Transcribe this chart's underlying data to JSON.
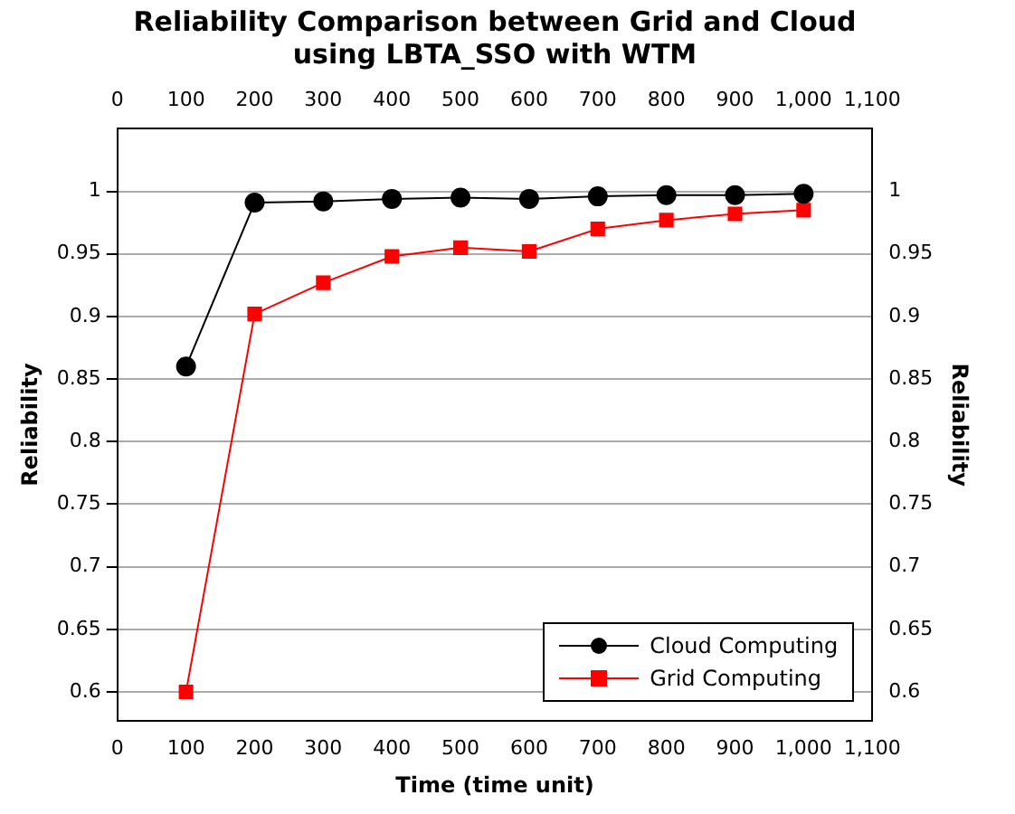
{
  "chart_data": {
    "type": "line",
    "title": "Reliability Comparison between Grid and Cloud using LBTA_SSO with WTM",
    "xlabel": "Time (time unit)",
    "ylabel": "Reliability",
    "y2label": "Reliability",
    "x": [
      100,
      200,
      300,
      400,
      500,
      600,
      700,
      800,
      900,
      1000
    ],
    "series": [
      {
        "name": "Cloud Computing",
        "color": "#000000",
        "marker": "circle",
        "values": [
          0.86,
          0.991,
          0.992,
          0.994,
          0.995,
          0.994,
          0.996,
          0.997,
          0.997,
          0.998
        ]
      },
      {
        "name": "Grid Computing",
        "color": "#ff0000",
        "marker": "square",
        "values": [
          0.6,
          0.902,
          0.927,
          0.948,
          0.955,
          0.952,
          0.97,
          0.977,
          0.982,
          0.985
        ]
      }
    ],
    "xlim": [
      0,
      1100
    ],
    "xticks": [
      0,
      100,
      200,
      300,
      400,
      500,
      600,
      700,
      800,
      900,
      {
        "value": 1000,
        "label": "1,000"
      },
      {
        "value": 1100,
        "label": "1,100"
      }
    ],
    "x2lim": [
      0,
      1100
    ],
    "x2ticks": [
      0,
      100,
      200,
      300,
      400,
      500,
      600,
      700,
      800,
      900,
      {
        "value": 1000,
        "label": "1,000"
      },
      {
        "value": 1100,
        "label": "1,100"
      }
    ],
    "ylim": [
      0.577,
      1.05
    ],
    "yticks": [
      0.6,
      0.65,
      0.7,
      0.75,
      0.8,
      0.85,
      0.9,
      0.95,
      1
    ],
    "y2lim": [
      0.577,
      1.05
    ],
    "y2ticks": [
      0.6,
      0.65,
      0.7,
      0.75,
      0.8,
      0.85,
      0.9,
      0.95,
      1
    ],
    "grid": "y",
    "legend": "bottom right",
    "line_style": "solid"
  }
}
